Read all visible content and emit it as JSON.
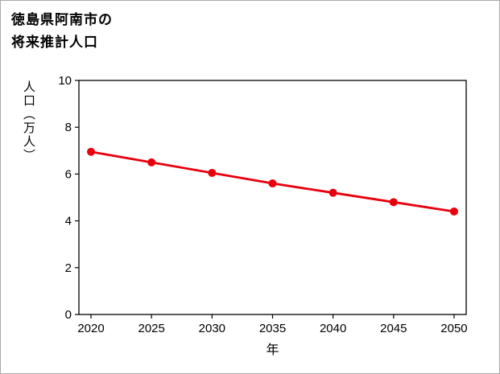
{
  "page": {
    "background": "#ffffff",
    "border_color": "#a9a9a9"
  },
  "chart_data": {
    "type": "line",
    "title_lines": [
      "徳島県阿南市の",
      "将来推計人口"
    ],
    "xlabel": "年",
    "ylabel": "人口（万人）",
    "x": [
      2020,
      2025,
      2030,
      2035,
      2040,
      2045,
      2050
    ],
    "values": [
      6.95,
      6.5,
      6.05,
      5.6,
      5.2,
      4.8,
      4.4
    ],
    "xlim": [
      2019,
      2051
    ],
    "ylim": [
      0,
      10
    ],
    "x_ticks": [
      2020,
      2025,
      2030,
      2035,
      2040,
      2045,
      2050
    ],
    "y_ticks": [
      0,
      2,
      4,
      6,
      8,
      10
    ],
    "grid": false,
    "legend": "none",
    "line_color": "#e8000d",
    "marker": "circle"
  }
}
